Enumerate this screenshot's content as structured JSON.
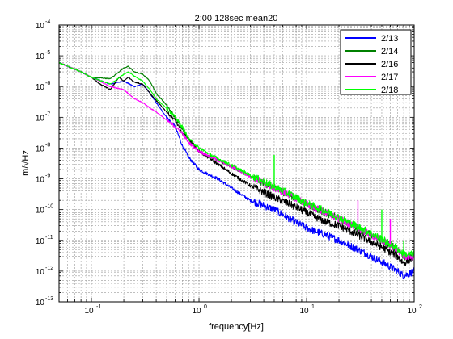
{
  "chart_data": {
    "type": "line",
    "title": "2:00 128sec mean20",
    "xlabel": "frequency[Hz]",
    "ylabel": "m/√Hz",
    "xscale": "log",
    "yscale": "log",
    "xlim": [
      0.05,
      100
    ],
    "ylim": [
      1e-13,
      0.0001
    ],
    "grid": true,
    "legend_position": "top-right",
    "x_ticks": [
      {
        "value": 0.1,
        "base": "10",
        "exp": "-1"
      },
      {
        "value": 1,
        "base": "10",
        "exp": "0"
      },
      {
        "value": 10,
        "base": "10",
        "exp": "1"
      },
      {
        "value": 100,
        "base": "10",
        "exp": "2"
      }
    ],
    "y_ticks": [
      {
        "value": 1e-13,
        "base": "10",
        "exp": "-13"
      },
      {
        "value": 1e-12,
        "base": "10",
        "exp": "-12"
      },
      {
        "value": 1e-11,
        "base": "10",
        "exp": "-11"
      },
      {
        "value": 1e-10,
        "base": "10",
        "exp": "-10"
      },
      {
        "value": 1e-09,
        "base": "10",
        "exp": "-9"
      },
      {
        "value": 1e-08,
        "base": "10",
        "exp": "-8"
      },
      {
        "value": 1e-07,
        "base": "10",
        "exp": "-7"
      },
      {
        "value": 1e-06,
        "base": "10",
        "exp": "-6"
      },
      {
        "value": 1e-05,
        "base": "10",
        "exp": "-5"
      },
      {
        "value": 0.0001,
        "base": "10",
        "exp": "-4"
      }
    ],
    "series": [
      {
        "name": "2/13",
        "color": "#0000ff",
        "x": [
          0.05,
          0.08,
          0.1,
          0.15,
          0.2,
          0.25,
          0.3,
          0.35,
          0.4,
          0.5,
          0.6,
          0.7,
          0.8,
          1,
          1.5,
          2,
          3,
          5,
          7,
          10,
          15,
          20,
          30,
          50,
          70,
          80,
          100
        ],
        "y": [
          6e-06,
          3e-06,
          2e-06,
          1.2e-06,
          1.5e-06,
          1e-06,
          1.2e-06,
          6e-07,
          3e-07,
          1e-07,
          5e-08,
          1.2e-08,
          5e-09,
          2e-09,
          1e-09,
          5e-10,
          2e-10,
          1e-10,
          5e-11,
          2.5e-11,
          1.5e-11,
          1e-11,
          5e-12,
          2e-12,
          1e-12,
          7e-13,
          1e-12
        ]
      },
      {
        "name": "2/14",
        "color": "#008000",
        "x": [
          0.05,
          0.08,
          0.1,
          0.15,
          0.18,
          0.2,
          0.22,
          0.25,
          0.3,
          0.35,
          0.4,
          0.5,
          0.6,
          0.7,
          0.8,
          1,
          1.5,
          2,
          3,
          5,
          7,
          10,
          15,
          20,
          30,
          50,
          70,
          80,
          100
        ],
        "y": [
          6e-06,
          3e-06,
          2e-06,
          1.8e-06,
          3e-06,
          4e-06,
          4.5e-06,
          3e-06,
          2.5e-06,
          1.5e-06,
          6e-07,
          2.5e-07,
          1e-07,
          4e-08,
          2e-08,
          8e-09,
          4e-09,
          2.5e-09,
          1.2e-09,
          5e-10,
          3e-10,
          1.5e-10,
          8e-11,
          5e-11,
          2.5e-11,
          1e-11,
          5e-12,
          3e-12,
          3e-12
        ]
      },
      {
        "name": "2/16",
        "color": "#000000",
        "x": [
          0.05,
          0.08,
          0.1,
          0.12,
          0.15,
          0.18,
          0.2,
          0.22,
          0.25,
          0.3,
          0.35,
          0.4,
          0.5,
          0.6,
          0.7,
          0.8,
          1,
          1.5,
          2,
          3,
          5,
          7,
          10,
          15,
          20,
          30,
          50,
          70,
          80,
          100
        ],
        "y": [
          6e-06,
          3e-06,
          2e-06,
          1.2e-06,
          8e-07,
          2e-06,
          1.5e-06,
          2e-06,
          1.4e-06,
          1.2e-06,
          6e-07,
          3.5e-07,
          1.5e-07,
          8e-08,
          3e-08,
          2e-08,
          8e-09,
          3e-09,
          1.5e-09,
          6e-10,
          2.5e-10,
          1.5e-10,
          8e-11,
          4e-11,
          3e-11,
          1.5e-11,
          6e-12,
          3e-12,
          1.8e-12,
          3e-12
        ]
      },
      {
        "name": "2/17",
        "color": "#ff00ff",
        "x": [
          0.05,
          0.08,
          0.1,
          0.15,
          0.2,
          0.25,
          0.3,
          0.35,
          0.4,
          0.5,
          0.6,
          0.7,
          0.8,
          1,
          1.5,
          2,
          3,
          5,
          7,
          10,
          15,
          20,
          30,
          50,
          70,
          80,
          100
        ],
        "y": [
          6e-06,
          3e-06,
          2e-06,
          1e-06,
          8e-07,
          4e-07,
          3e-07,
          2e-07,
          1.5e-07,
          8e-08,
          5e-08,
          3e-08,
          1.5e-08,
          8e-09,
          4e-09,
          2.5e-09,
          1.2e-09,
          5e-10,
          3e-10,
          1.5e-10,
          8e-11,
          5e-11,
          2.5e-11,
          1e-11,
          5e-12,
          3e-12,
          3e-12
        ]
      },
      {
        "name": "2/18",
        "color": "#00ff00",
        "x": [
          0.05,
          0.08,
          0.1,
          0.15,
          0.2,
          0.22,
          0.25,
          0.3,
          0.35,
          0.4,
          0.5,
          0.6,
          0.7,
          0.8,
          1,
          1.5,
          2,
          3,
          5,
          7,
          10,
          15,
          20,
          30,
          50,
          70,
          80,
          100
        ],
        "y": [
          6e-06,
          3e-06,
          2e-06,
          1.2e-06,
          2.5e-06,
          3e-06,
          2.2e-06,
          1.5e-06,
          8e-07,
          4e-07,
          2e-07,
          1e-07,
          5e-08,
          2e-08,
          1e-08,
          4.5e-09,
          2.8e-09,
          1.3e-09,
          5.5e-10,
          3.2e-10,
          1.6e-10,
          9e-11,
          5.5e-11,
          2.8e-11,
          1.1e-11,
          5.5e-12,
          3.5e-12,
          3.5e-12
        ]
      }
    ],
    "spikes": [
      {
        "x": 5,
        "peak": 6e-09
      },
      {
        "x": 30,
        "peak": 2e-10
      },
      {
        "x": 50,
        "peak": 1e-10
      },
      {
        "x": 60,
        "peak": 5e-11
      },
      {
        "x": 80,
        "peak": 1e-11
      }
    ]
  }
}
